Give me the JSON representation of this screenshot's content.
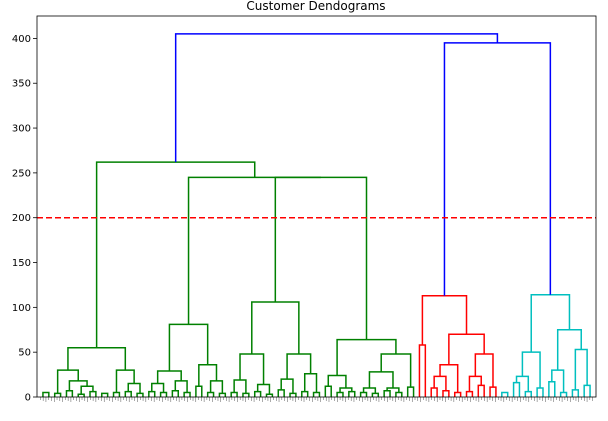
{
  "chart_data": {
    "type": "dendrogram",
    "title": "Customer Dendograms",
    "xlabel": "",
    "ylabel": "",
    "ylim": [
      0,
      425
    ],
    "yticks": [
      0,
      50,
      100,
      150,
      200,
      250,
      300,
      350,
      400
    ],
    "x_tick_labels": "leaf indices (illegible)",
    "leaf_count": 200,
    "grid": false,
    "threshold_line": {
      "y": 200,
      "color": "#ff0000",
      "style": "dashed"
    },
    "colors": {
      "above_threshold": "#0000ff",
      "green": "#008000",
      "red": "#ff0000",
      "cyan": "#00bfbf"
    },
    "merges": [
      {
        "id": "a1",
        "l": 0,
        "r": 1,
        "h": 5,
        "c": "green"
      },
      {
        "id": "a2",
        "l": 2,
        "r": 3,
        "h": 4,
        "c": "green"
      },
      {
        "id": "a3",
        "l": 4,
        "r": 5,
        "h": 7,
        "c": "green"
      },
      {
        "id": "a4",
        "l": 6,
        "r": 7,
        "h": 3,
        "c": "green"
      },
      {
        "id": "a5",
        "l": 8,
        "r": 9,
        "h": 6,
        "c": "green"
      },
      {
        "id": "a6",
        "l": 10,
        "r": 11,
        "h": 4,
        "c": "green"
      },
      {
        "id": "a7",
        "l": "a4",
        "r": "a5",
        "h": 12,
        "c": "green"
      },
      {
        "id": "a8",
        "l": "a3",
        "r": "a7",
        "h": 18,
        "c": "green"
      },
      {
        "id": "a9",
        "l": "a2",
        "r": "a8",
        "h": 30,
        "c": "green"
      },
      {
        "id": "a10",
        "l": 12,
        "r": 13,
        "h": 5,
        "c": "green"
      },
      {
        "id": "a11",
        "l": 14,
        "r": 15,
        "h": 6,
        "c": "green"
      },
      {
        "id": "a12",
        "l": 16,
        "r": 17,
        "h": 4,
        "c": "green"
      },
      {
        "id": "a13",
        "l": "a11",
        "r": "a12",
        "h": 15,
        "c": "green"
      },
      {
        "id": "a14",
        "l": "a10",
        "r": "a13",
        "h": 30,
        "c": "green"
      },
      {
        "id": "a15",
        "l": "a9",
        "r": "a14",
        "h": 55,
        "c": "green"
      },
      {
        "id": "b1",
        "l": 18,
        "r": 19,
        "h": 6,
        "c": "green"
      },
      {
        "id": "b2",
        "l": 20,
        "r": 21,
        "h": 5,
        "c": "green"
      },
      {
        "id": "b3",
        "l": "b1",
        "r": "b2",
        "h": 15,
        "c": "green"
      },
      {
        "id": "b4",
        "l": 22,
        "r": 23,
        "h": 7,
        "c": "green"
      },
      {
        "id": "b5",
        "l": 24,
        "r": 25,
        "h": 5,
        "c": "green"
      },
      {
        "id": "b6",
        "l": "b4",
        "r": "b5",
        "h": 18,
        "c": "green"
      },
      {
        "id": "b7",
        "l": "b3",
        "r": "b6",
        "h": 29,
        "c": "green"
      },
      {
        "id": "b8",
        "l": 26,
        "r": 27,
        "h": 12,
        "c": "green"
      },
      {
        "id": "b9",
        "l": 28,
        "r": 29,
        "h": 5,
        "c": "green"
      },
      {
        "id": "b10",
        "l": 30,
        "r": 31,
        "h": 4,
        "c": "green"
      },
      {
        "id": "b11",
        "l": "b9",
        "r": "b10",
        "h": 18,
        "c": "green"
      },
      {
        "id": "b12",
        "l": "b8",
        "r": "b11",
        "h": 36,
        "c": "green"
      },
      {
        "id": "b13",
        "l": "b7",
        "r": "b12",
        "h": 81,
        "c": "green"
      },
      {
        "id": "c1",
        "l": 32,
        "r": 33,
        "h": 5,
        "c": "green"
      },
      {
        "id": "c2",
        "l": 34,
        "r": 35,
        "h": 4,
        "c": "green"
      },
      {
        "id": "c3",
        "l": "c1",
        "r": "c2",
        "h": 19,
        "c": "green"
      },
      {
        "id": "c4",
        "l": 36,
        "r": 37,
        "h": 6,
        "c": "green"
      },
      {
        "id": "c5",
        "l": 38,
        "r": 39,
        "h": 3,
        "c": "green"
      },
      {
        "id": "c6",
        "l": "c4",
        "r": "c5",
        "h": 14,
        "c": "green"
      },
      {
        "id": "c7",
        "l": "c3",
        "r": "c6",
        "h": 48,
        "c": "green"
      },
      {
        "id": "c8",
        "l": 40,
        "r": 41,
        "h": 8,
        "c": "green"
      },
      {
        "id": "c9",
        "l": 42,
        "r": 43,
        "h": 4,
        "c": "green"
      },
      {
        "id": "c10",
        "l": "c8",
        "r": "c9",
        "h": 20,
        "c": "green"
      },
      {
        "id": "c11",
        "l": 44,
        "r": 45,
        "h": 6,
        "c": "green"
      },
      {
        "id": "c12",
        "l": 46,
        "r": 47,
        "h": 5,
        "c": "green"
      },
      {
        "id": "c13",
        "l": "c11",
        "r": "c12",
        "h": 26,
        "c": "green"
      },
      {
        "id": "c14",
        "l": "c10",
        "r": "c13",
        "h": 48,
        "c": "green"
      },
      {
        "id": "c15",
        "l": "c7",
        "r": "c14",
        "h": 106,
        "c": "green"
      },
      {
        "id": "d1",
        "l": 48,
        "r": 49,
        "h": 12,
        "c": "green"
      },
      {
        "id": "d2",
        "l": 50,
        "r": 51,
        "h": 5,
        "c": "green"
      },
      {
        "id": "d3",
        "l": 52,
        "r": 53,
        "h": 6,
        "c": "green"
      },
      {
        "id": "d4",
        "l": "d2",
        "r": "d3",
        "h": 10,
        "c": "green"
      },
      {
        "id": "d5",
        "l": "d1",
        "r": "d4",
        "h": 24,
        "c": "green"
      },
      {
        "id": "d6",
        "l": 54,
        "r": 55,
        "h": 5,
        "c": "green"
      },
      {
        "id": "d7",
        "l": 56,
        "r": 57,
        "h": 4,
        "c": "green"
      },
      {
        "id": "d8",
        "l": "d6",
        "r": "d7",
        "h": 10,
        "c": "green"
      },
      {
        "id": "d9",
        "l": 58,
        "r": 59,
        "h": 7,
        "c": "green"
      },
      {
        "id": "d10",
        "l": 60,
        "r": 61,
        "h": 5,
        "c": "green"
      },
      {
        "id": "d11",
        "l": "d9",
        "r": "d10",
        "h": 10,
        "c": "green"
      },
      {
        "id": "d12",
        "l": "d8",
        "r": "d11",
        "h": 28,
        "c": "green"
      },
      {
        "id": "d13",
        "l": 62,
        "r": 63,
        "h": 11,
        "c": "green"
      },
      {
        "id": "d14",
        "l": "d12",
        "r": "d13",
        "h": 48,
        "c": "green"
      },
      {
        "id": "d15",
        "l": "d5",
        "r": "d14",
        "h": 64,
        "c": "green"
      },
      {
        "id": "g1",
        "l": "c15",
        "r": "d15",
        "h": 245,
        "c": "green"
      },
      {
        "id": "g2",
        "l": "b13",
        "r": "g1",
        "h": 245,
        "c": "green"
      },
      {
        "id": "g3",
        "l": "a15",
        "r": "g2",
        "h": 262,
        "c": "green"
      },
      {
        "id": "r1",
        "l": 64,
        "r": 65,
        "h": 58,
        "c": "red"
      },
      {
        "id": "r2",
        "l": 66,
        "r": 67,
        "h": 10,
        "c": "red"
      },
      {
        "id": "r3",
        "l": 68,
        "r": 69,
        "h": 7,
        "c": "red"
      },
      {
        "id": "r4",
        "l": "r2",
        "r": "r3",
        "h": 23,
        "c": "red"
      },
      {
        "id": "r5",
        "l": 70,
        "r": 71,
        "h": 5,
        "c": "red"
      },
      {
        "id": "r6",
        "l": "r4",
        "r": "r5",
        "h": 36,
        "c": "red"
      },
      {
        "id": "r7",
        "l": 72,
        "r": 73,
        "h": 6,
        "c": "red"
      },
      {
        "id": "r8",
        "l": 74,
        "r": 75,
        "h": 13,
        "c": "red"
      },
      {
        "id": "r9",
        "l": "r7",
        "r": "r8",
        "h": 23,
        "c": "red"
      },
      {
        "id": "r10",
        "l": 76,
        "r": 77,
        "h": 11,
        "c": "red"
      },
      {
        "id": "r11",
        "l": "r9",
        "r": "r10",
        "h": 48,
        "c": "red"
      },
      {
        "id": "r12",
        "l": "r6",
        "r": "r11",
        "h": 70,
        "c": "red"
      },
      {
        "id": "r13",
        "l": "r1",
        "r": "r12",
        "h": 113,
        "c": "red"
      },
      {
        "id": "t1",
        "l": 78,
        "r": 79,
        "h": 5,
        "c": "cyan"
      },
      {
        "id": "t2",
        "l": 80,
        "r": 81,
        "h": 16,
        "c": "cyan"
      },
      {
        "id": "t3",
        "l": 82,
        "r": 83,
        "h": 6,
        "c": "cyan"
      },
      {
        "id": "t4",
        "l": "t2",
        "r": "t3",
        "h": 23,
        "c": "cyan"
      },
      {
        "id": "t5",
        "l": 84,
        "r": 85,
        "h": 10,
        "c": "cyan"
      },
      {
        "id": "t6",
        "l": "t4",
        "r": "t5",
        "h": 50,
        "c": "cyan"
      },
      {
        "id": "t7",
        "l": 86,
        "r": 87,
        "h": 17,
        "c": "cyan"
      },
      {
        "id": "t8",
        "l": 88,
        "r": 89,
        "h": 5,
        "c": "cyan"
      },
      {
        "id": "t9",
        "l": "t7",
        "r": "t8",
        "h": 30,
        "c": "cyan"
      },
      {
        "id": "t10",
        "l": 90,
        "r": 91,
        "h": 8,
        "c": "cyan"
      },
      {
        "id": "t11",
        "l": 92,
        "r": 93,
        "h": 13,
        "c": "cyan"
      },
      {
        "id": "t12",
        "l": "t10",
        "r": "t11",
        "h": 53,
        "c": "cyan"
      },
      {
        "id": "t13",
        "l": "t9",
        "r": "t12",
        "h": 75,
        "c": "cyan"
      },
      {
        "id": "t14",
        "l": "t6",
        "r": "t13",
        "h": 114,
        "c": "cyan"
      },
      {
        "id": "u1",
        "l": "r13",
        "r": "t14",
        "h": 395,
        "c": "blue"
      },
      {
        "id": "u2",
        "l": "g3",
        "r": "u1",
        "h": 405,
        "c": "blue"
      }
    ]
  }
}
